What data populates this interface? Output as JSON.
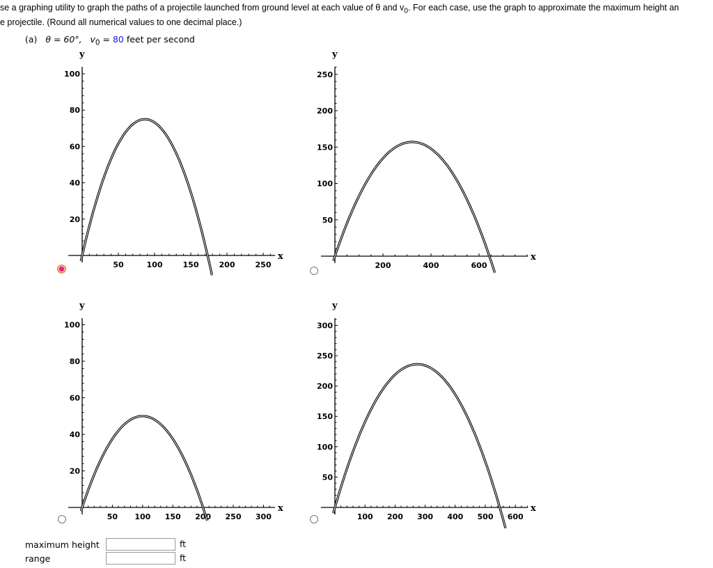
{
  "question": {
    "line1": "se a graphing utility to graph the paths of a projectile launched from ground level at each value of θ and v",
    "line1_sub": "0",
    "line1_end": ". For each case, use the graph to approximate the maximum height an",
    "line2": "e projectile. (Round all numerical values to one decimal place.)"
  },
  "part": {
    "label": "(a)",
    "theta": "θ = 60°,",
    "v0": "v",
    "v0_sub": "0",
    "eq": "=",
    "speed": "80",
    "unit": "feet per second"
  },
  "accent_color": "#1a1adc",
  "options": [
    {
      "selected": true
    },
    {
      "selected": false
    },
    {
      "selected": false
    },
    {
      "selected": false
    }
  ],
  "chart_data": [
    {
      "type": "line",
      "xlabel": "x",
      "ylabel": "y",
      "xticks": [
        50,
        100,
        150,
        200,
        250
      ],
      "yticks": [
        20,
        40,
        60,
        80,
        100
      ],
      "max_height": 75,
      "range": 173.2
    },
    {
      "type": "line",
      "xlabel": "x",
      "ylabel": "y",
      "xticks": [
        200,
        400,
        600
      ],
      "yticks": [
        50,
        100,
        150,
        200,
        250
      ],
      "max_height": 157,
      "range": 643
    },
    {
      "type": "line",
      "xlabel": "x",
      "ylabel": "y",
      "xticks": [
        50,
        100,
        150,
        200,
        250,
        300
      ],
      "yticks": [
        20,
        40,
        60,
        80,
        100
      ],
      "max_height": 50,
      "range": 200
    },
    {
      "type": "line",
      "xlabel": "x",
      "ylabel": "y",
      "xticks": [
        100,
        200,
        300,
        400,
        500,
        600
      ],
      "yticks": [
        50,
        100,
        150,
        200,
        250,
        300
      ],
      "max_height": 236,
      "range": 548
    }
  ],
  "answers": {
    "max_height_label": "maximum height",
    "max_height_value": "",
    "range_label": "range",
    "range_value": "",
    "unit": "ft"
  }
}
